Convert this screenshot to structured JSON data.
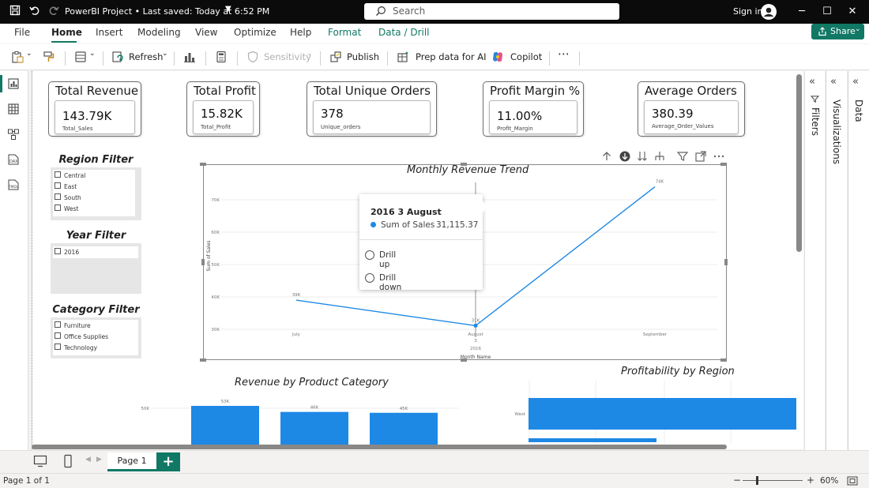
{
  "window": {
    "title": "PowerBI Project • Last saved: Today at 6:52 PM",
    "search_placeholder": "Search",
    "sign_in": "Sign in"
  },
  "menu": {
    "tabs": [
      "File",
      "Home",
      "Insert",
      "Modeling",
      "View",
      "Optimize",
      "Help",
      "Format",
      "Data / Drill"
    ],
    "active": "Home",
    "share": "Share"
  },
  "toolbar": {
    "refresh": "Refresh",
    "sensitivity": "Sensitivity",
    "publish": "Publish",
    "prep_data": "Prep data for AI",
    "copilot": "Copilot",
    "more": "⋯"
  },
  "kpis": [
    {
      "title": "Total Revenue",
      "value": "143.79K",
      "sub": "Total_Sales"
    },
    {
      "title": "Total Profit",
      "value": "15.82K",
      "sub": "Total_Profit"
    },
    {
      "title": "Total Unique Orders",
      "value": "378",
      "sub": "Unique_orders"
    },
    {
      "title": "Profit Margin %",
      "value": "11.00%",
      "sub": "Profit_Margin"
    },
    {
      "title": "Average Orders",
      "value": "380.39",
      "sub": "Average_Order_Values"
    }
  ],
  "slicers": {
    "region": {
      "title": "Region Filter",
      "options": [
        "Central",
        "East",
        "South",
        "West"
      ]
    },
    "year": {
      "title": "Year Filter",
      "options": [
        "2016"
      ]
    },
    "category": {
      "title": "Category Filter",
      "options": [
        "Furniture",
        "Office Supplies",
        "Technology"
      ]
    }
  },
  "tooltip": {
    "title": "2016 3 August",
    "series": "Sum of Sales",
    "value": "31,115.37",
    "drill_up": "Drill up",
    "drill_down": "Drill down"
  },
  "chart_data": [
    {
      "type": "line",
      "title": "Monthly Revenue Trend",
      "xlabel": "Month Name",
      "ylabel": "Sum of Sales",
      "x": [
        "July",
        "August",
        "September"
      ],
      "x_sub": [
        "",
        "3",
        ""
      ],
      "x_group": "2016",
      "series": [
        {
          "name": "Sum of Sales",
          "values": [
            39000,
            31115.37,
            74000
          ]
        }
      ],
      "data_labels": [
        "39K",
        "31K",
        "74K"
      ],
      "yticks": [
        "30K",
        "40K",
        "50K",
        "60K",
        "70K"
      ],
      "ylim": [
        30000,
        70000
      ],
      "color": "#1e88e5"
    },
    {
      "type": "bar",
      "title": "Revenue by Product Category",
      "values": [
        53000,
        46000,
        45000
      ],
      "data_labels": [
        "53K",
        "46K",
        "45K"
      ],
      "yticks": [
        "50K"
      ],
      "color": "#1e88e5"
    },
    {
      "type": "bar",
      "title": "Profitability by Region",
      "categories": [
        "West"
      ],
      "color": "#1e88e5"
    }
  ],
  "pages": {
    "tab": "Page 1",
    "add": "+"
  },
  "status": {
    "page_info": "Page 1 of 1",
    "zoom": "60%",
    "zoom_minus": "−",
    "zoom_plus": "+"
  },
  "panes": {
    "filters": "Filters",
    "visualizations": "Visualizations",
    "data": "Data"
  },
  "colors": {
    "accent": "#117865",
    "series": "#1e88e5"
  }
}
